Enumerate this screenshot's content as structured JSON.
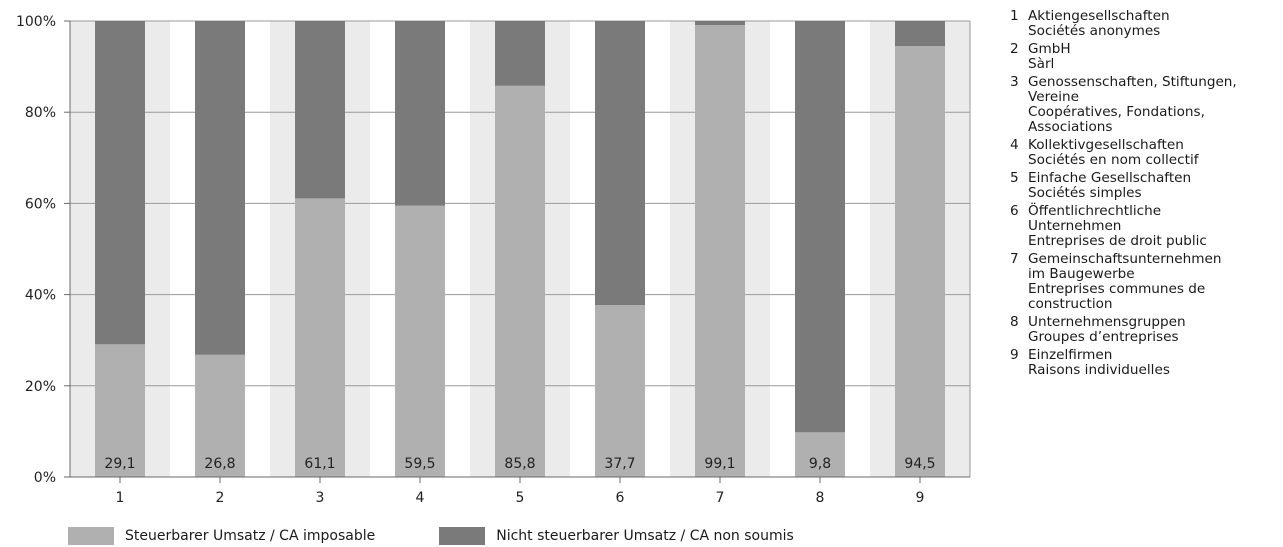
{
  "chart_data": {
    "type": "bar",
    "stacked": true,
    "categories": [
      "1",
      "2",
      "3",
      "4",
      "5",
      "6",
      "7",
      "8",
      "9"
    ],
    "series": [
      {
        "name": "Steuerbarer Umsatz / CA imposable",
        "color": "#b0b0b0",
        "values": [
          29.1,
          26.8,
          61.1,
          59.5,
          85.8,
          37.7,
          99.1,
          9.8,
          94.5
        ]
      },
      {
        "name": "Nicht steuerbarer Umsatz / CA non soumis",
        "color": "#7a7a7a",
        "values": [
          70.9,
          73.2,
          38.9,
          40.5,
          14.2,
          62.3,
          0.9,
          90.2,
          5.5
        ]
      }
    ],
    "data_labels": [
      "29,1",
      "26,8",
      "61,1",
      "59,5",
      "85,8",
      "37,7",
      "99,1",
      "9,8",
      "94,5"
    ],
    "yticks": [
      "0%",
      "20%",
      "40%",
      "60%",
      "80%",
      "100%"
    ],
    "ylim": [
      0,
      100
    ],
    "band_colors": [
      "#ebebeb",
      "#ffffff"
    ],
    "grid": true,
    "legend_position": "bottom",
    "category_key": [
      {
        "num": "1",
        "lines": [
          "Aktiengesellschaften",
          "Sociétés anonymes"
        ]
      },
      {
        "num": "2",
        "lines": [
          "GmbH",
          "Sàrl"
        ]
      },
      {
        "num": "3",
        "lines": [
          "Genossenschaften, Stiftungen,",
          "Vereine",
          "Coopératives, Fondations,",
          "Associations"
        ]
      },
      {
        "num": "4",
        "lines": [
          "Kollektivgesellschaften",
          "Sociétés en nom collectif"
        ]
      },
      {
        "num": "5",
        "lines": [
          "Einfache Gesellschaften",
          "Sociétés simples"
        ]
      },
      {
        "num": "6",
        "lines": [
          "Öffentlichrechtliche",
          "Unternehmen",
          "Entreprises de droit public"
        ]
      },
      {
        "num": "7",
        "lines": [
          "Gemeinschaftsunternehmen",
          "im Baugewerbe",
          "Entreprises communes de",
          "construction"
        ]
      },
      {
        "num": "8",
        "lines": [
          "Unternehmensgruppen",
          "Groupes d’entreprises"
        ]
      },
      {
        "num": "9",
        "lines": [
          "Einzelfirmen",
          "Raisons individuelles"
        ]
      }
    ]
  }
}
